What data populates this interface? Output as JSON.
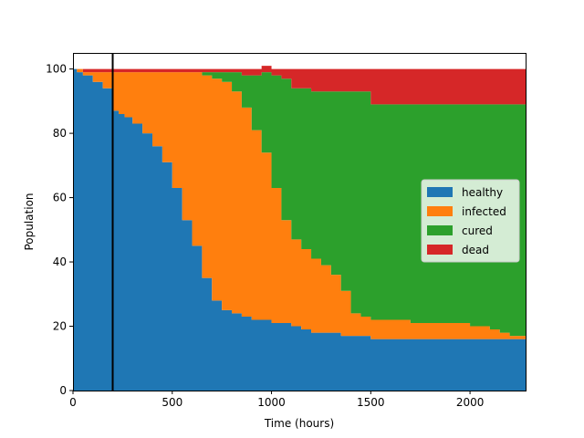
{
  "chart_data": {
    "type": "area",
    "xlabel": "Time (hours)",
    "ylabel": "Population",
    "xlim": [
      0,
      2280
    ],
    "ylim": [
      0,
      105
    ],
    "xticks": [
      0,
      500,
      1000,
      1500,
      2000
    ],
    "yticks": [
      0,
      20,
      40,
      60,
      80,
      100
    ],
    "xtick_labels": [
      "0",
      "500",
      "1000",
      "1500",
      "2000"
    ],
    "ytick_labels": [
      "0",
      "20",
      "40",
      "60",
      "80",
      "100"
    ],
    "grid": false,
    "legend_position": "center-right",
    "vline_x": 200,
    "x": [
      0,
      20,
      50,
      100,
      150,
      199,
      200,
      230,
      260,
      300,
      350,
      400,
      450,
      500,
      550,
      600,
      650,
      700,
      750,
      800,
      850,
      900,
      950,
      1000,
      1050,
      1100,
      1150,
      1200,
      1250,
      1300,
      1350,
      1400,
      1450,
      1500,
      1550,
      1600,
      1700,
      1800,
      1900,
      2000,
      2100,
      2150,
      2200,
      2280
    ],
    "series": [
      {
        "name": "healthy",
        "color": "#1f77b4",
        "values": [
          100,
          99,
          98,
          96,
          94,
          93,
          87,
          86,
          85,
          83,
          80,
          76,
          71,
          63,
          53,
          45,
          35,
          28,
          25,
          24,
          23,
          22,
          22,
          21,
          21,
          20,
          19,
          18,
          18,
          18,
          17,
          17,
          17,
          16,
          16,
          16,
          16,
          16,
          16,
          16,
          16,
          16,
          16,
          16
        ]
      },
      {
        "name": "infected",
        "color": "#ff7f0e",
        "values": [
          0,
          1,
          1,
          3,
          5,
          6,
          12,
          13,
          14,
          16,
          19,
          23,
          28,
          36,
          46,
          54,
          63,
          69,
          71,
          69,
          65,
          59,
          52,
          42,
          32,
          27,
          25,
          23,
          21,
          18,
          14,
          7,
          6,
          6,
          6,
          6,
          5,
          5,
          5,
          4,
          3,
          2,
          1,
          1
        ]
      },
      {
        "name": "cured",
        "color": "#2ca02c",
        "values": [
          0,
          0,
          0,
          0,
          0,
          0,
          0,
          0,
          0,
          0,
          0,
          0,
          0,
          0,
          0,
          0,
          1,
          2,
          3,
          6,
          10,
          17,
          25,
          35,
          44,
          47,
          50,
          52,
          54,
          57,
          62,
          69,
          70,
          67,
          67,
          67,
          68,
          68,
          68,
          69,
          70,
          71,
          72,
          72
        ]
      },
      {
        "name": "dead",
        "color": "#d62728",
        "values": [
          0,
          0,
          1,
          1,
          1,
          1,
          1,
          1,
          1,
          1,
          1,
          1,
          1,
          1,
          1,
          1,
          1,
          1,
          1,
          1,
          2,
          2,
          2,
          2,
          3,
          6,
          6,
          7,
          7,
          7,
          7,
          7,
          7,
          11,
          11,
          11,
          11,
          11,
          11,
          11,
          11,
          11,
          11,
          11
        ]
      }
    ]
  }
}
